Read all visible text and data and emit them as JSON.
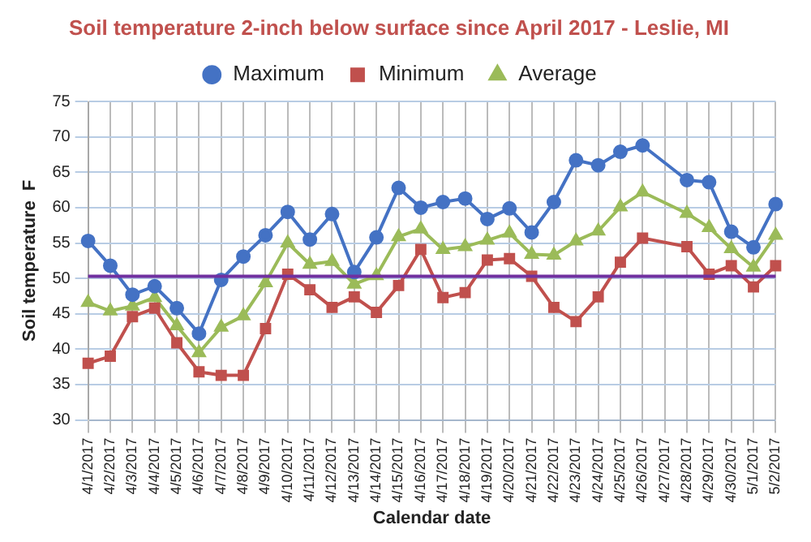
{
  "chart_data": {
    "type": "line",
    "title": "Soil temperature 2-inch below surface since April 2017 - Leslie, MI",
    "xlabel": "Calendar date",
    "ylabel": "Soil temperature  F",
    "categories": [
      "4/1/2017",
      "4/2/2017",
      "4/3/2017",
      "4/4/2017",
      "4/5/2017",
      "4/6/2017",
      "4/7/2017",
      "4/8/2017",
      "4/9/2017",
      "4/10/2017",
      "4/11/2017",
      "4/12/2017",
      "4/13/2017",
      "4/14/2017",
      "4/15/2017",
      "4/16/2017",
      "4/17/2017",
      "4/18/2017",
      "4/19/2017",
      "4/20/2017",
      "4/21/2017",
      "4/22/2017",
      "4/23/2017",
      "4/24/2017",
      "4/25/2017",
      "4/26/2017",
      "4/27/2017",
      "4/28/2017",
      "4/29/2017",
      "4/30/2017",
      "5/1/2017",
      "5/2/2017"
    ],
    "series": [
      {
        "name": "Maximum",
        "color": "#4472c4",
        "marker": "circle",
        "values": [
          55.3,
          51.8,
          47.7,
          48.9,
          45.8,
          42.2,
          49.8,
          53.1,
          56.1,
          59.4,
          55.5,
          59.1,
          50.9,
          55.8,
          62.8,
          60.0,
          60.8,
          61.3,
          58.4,
          59.9,
          56.5,
          60.8,
          66.7,
          66.0,
          67.9,
          68.8,
          null,
          63.9,
          63.6,
          56.6,
          54.4,
          60.5
        ]
      },
      {
        "name": "Minimum",
        "color": "#c0504d",
        "marker": "square",
        "values": [
          38.0,
          39.0,
          44.6,
          45.8,
          40.9,
          36.8,
          36.3,
          36.3,
          42.9,
          50.6,
          48.4,
          45.9,
          47.4,
          45.2,
          49.0,
          54.1,
          47.3,
          48.0,
          52.6,
          52.8,
          50.3,
          45.9,
          43.9,
          47.4,
          52.3,
          55.7,
          null,
          54.5,
          50.6,
          51.8,
          48.8,
          51.8
        ]
      },
      {
        "name": "Average",
        "color": "#9bbb59",
        "marker": "triangle",
        "values": [
          46.6,
          45.4,
          46.1,
          47.3,
          43.3,
          39.5,
          43.1,
          44.7,
          49.4,
          55.0,
          52.0,
          52.4,
          49.2,
          50.4,
          55.9,
          57.0,
          54.1,
          54.5,
          55.4,
          56.4,
          53.4,
          53.3,
          55.3,
          56.7,
          60.1,
          62.2,
          null,
          59.2,
          57.2,
          54.2,
          51.6,
          56.1
        ]
      }
    ],
    "ylim": [
      30,
      75
    ],
    "yticks": [
      30,
      35,
      40,
      45,
      50,
      55,
      60,
      65,
      70,
      75
    ],
    "grid": true,
    "legend": "top",
    "ref_lines": [
      {
        "axis": "y",
        "value": 50.3,
        "color": "#7030a0"
      }
    ]
  }
}
